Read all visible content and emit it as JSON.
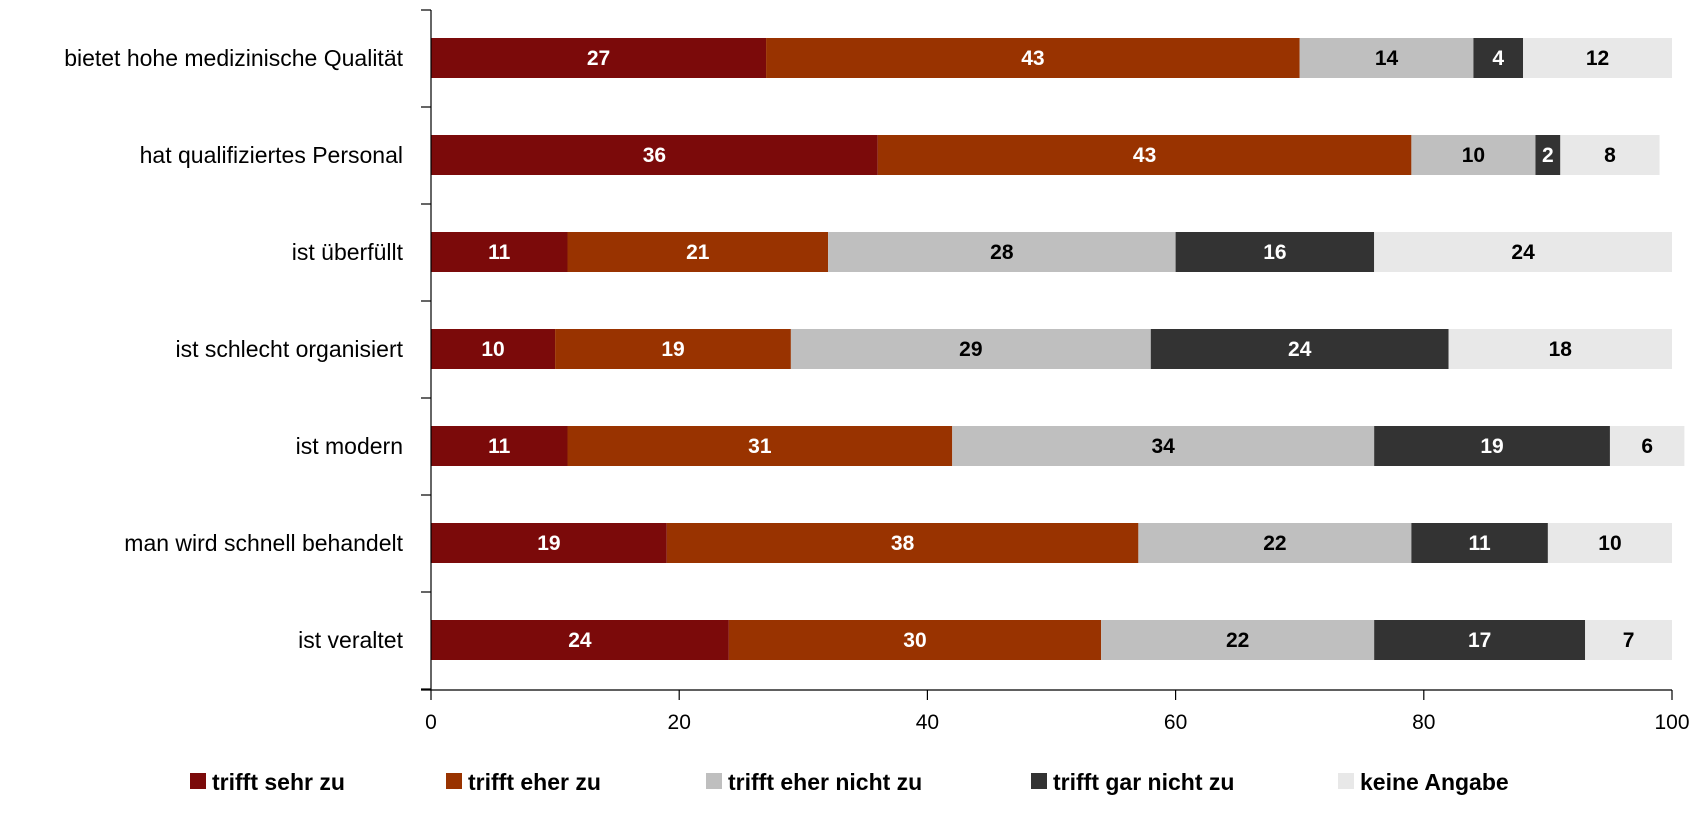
{
  "chart_data": {
    "type": "bar",
    "orientation": "horizontal",
    "stacked": true,
    "categories": [
      "bietet hohe medizinische Qualität",
      "hat qualifiziertes Personal",
      "ist überfüllt",
      "ist schlecht organisiert",
      "ist modern",
      "man wird schnell behandelt",
      "ist veraltet"
    ],
    "series": [
      {
        "name": "trifft sehr zu",
        "color": "#7B0A0A",
        "label_color": "#FFFFFF",
        "values": [
          27,
          36,
          11,
          10,
          11,
          19,
          24
        ]
      },
      {
        "name": "trifft eher zu",
        "color": "#993300",
        "label_color": "#FFFFFF",
        "values": [
          43,
          43,
          21,
          19,
          31,
          38,
          30
        ]
      },
      {
        "name": "trifft eher nicht zu",
        "color": "#BFBFBF",
        "label_color": "#000000",
        "values": [
          14,
          10,
          28,
          29,
          34,
          22,
          22
        ]
      },
      {
        "name": "trifft gar nicht zu",
        "color": "#333333",
        "label_color": "#FFFFFF",
        "values": [
          4,
          2,
          16,
          24,
          19,
          11,
          17
        ]
      },
      {
        "name": "keine Angabe",
        "color": "#E8E8E8",
        "label_color": "#000000",
        "values": [
          12,
          8,
          24,
          18,
          6,
          10,
          7
        ]
      }
    ],
    "xlim": [
      0,
      100
    ],
    "xticks": [
      0,
      20,
      40,
      60,
      80,
      100
    ],
    "xlabel": "",
    "ylabel": "",
    "grid": false,
    "legend_position": "bottom",
    "data_labels": true
  }
}
